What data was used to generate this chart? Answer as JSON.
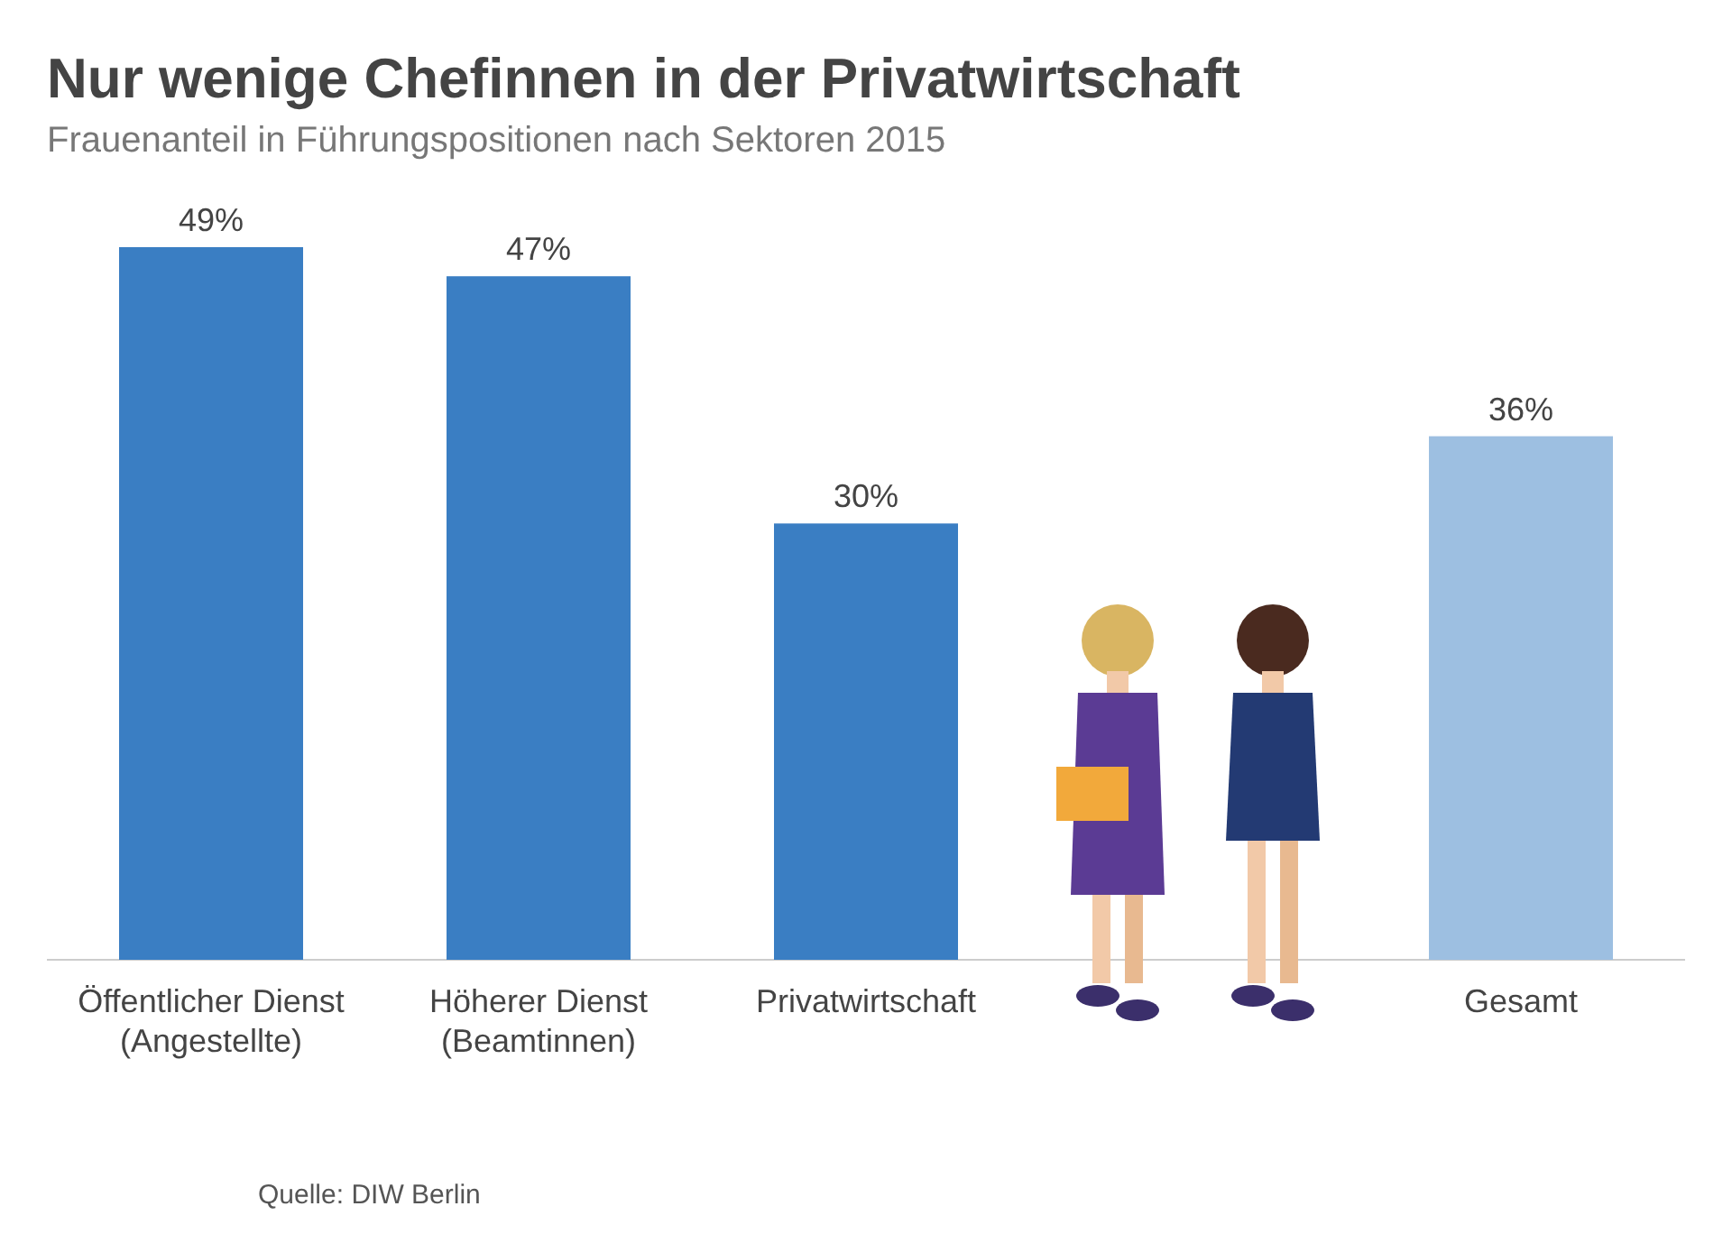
{
  "chart_data": {
    "type": "bar",
    "title": "Nur wenige Chefinnen in der Privatwirtschaft",
    "subtitle": "Frauenanteil in Führungspositionen nach Sektoren 2015",
    "categories": [
      "Öffentlicher Dienst\n(Angestellte)",
      "Höherer Dienst\n(Beamtinnen)",
      "Privatwirtschaft",
      null,
      "Gesamt"
    ],
    "values": [
      49,
      47,
      30,
      null,
      36
    ],
    "colors": [
      "#3a7ec3",
      "#3a7ec3",
      "#3a7ec3",
      null,
      "#9dbfe1"
    ],
    "value_labels": [
      "49%",
      "47%",
      "30%",
      null,
      "36%"
    ],
    "annotations": [
      "Quelle: DIW Berlin"
    ]
  }
}
